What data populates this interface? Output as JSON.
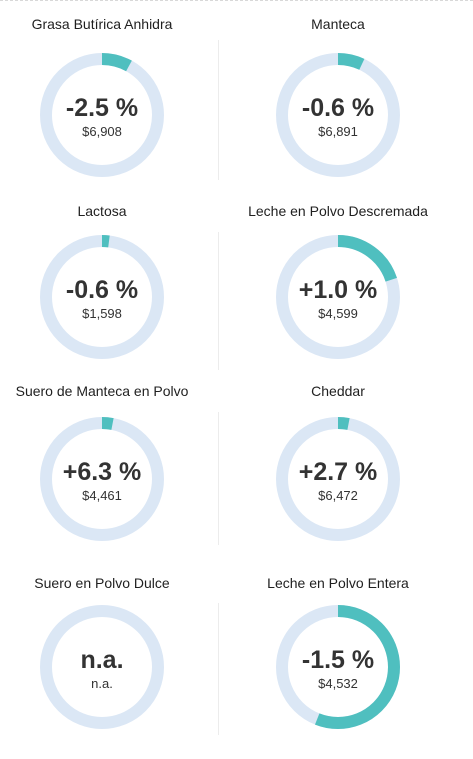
{
  "colors": {
    "track": "#dbe7f5",
    "progress": "#4fbfbf",
    "text": "#333333"
  },
  "chart_data": {
    "type": "donut-grid",
    "charts": [
      {
        "title": "Grasa Butírica Anhidra",
        "change": "-2.5 %",
        "price": "$6,908",
        "fill": 0.08
      },
      {
        "title": "Manteca",
        "change": "-0.6 %",
        "price": "$6,891",
        "fill": 0.07
      },
      {
        "title": "Lactosa",
        "change": "-0.6 %",
        "price": "$1,598",
        "fill": 0.02
      },
      {
        "title": "Leche en Polvo Descremada",
        "change": "+1.0 %",
        "price": "$4,599",
        "fill": 0.2
      },
      {
        "title": "Suero de Manteca en Polvo",
        "change": "+6.3 %",
        "price": "$4,461",
        "fill": 0.03
      },
      {
        "title": "Cheddar",
        "change": "+2.7 %",
        "price": "$6,472",
        "fill": 0.03
      },
      {
        "title": "Suero en Polvo Dulce",
        "change": "n.a.",
        "price": "n.a.",
        "fill": 0
      },
      {
        "title": "Leche en Polvo Entera",
        "change": "-1.5 %",
        "price": "$4,532",
        "fill": 0.56
      }
    ]
  }
}
